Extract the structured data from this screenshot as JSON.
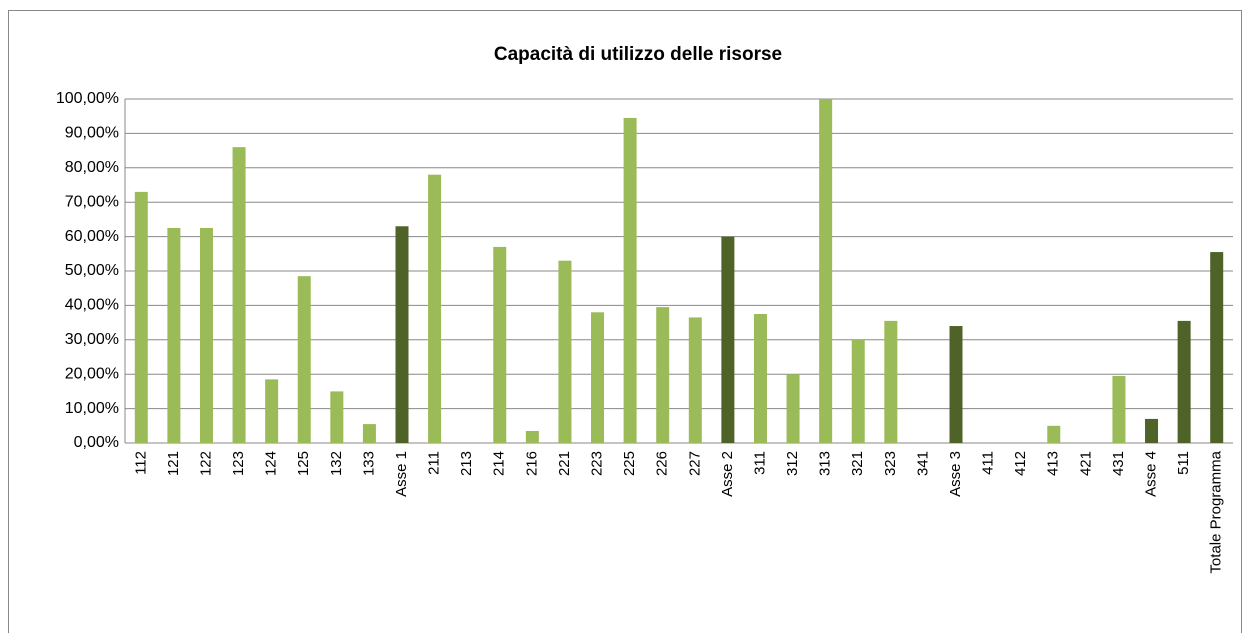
{
  "chart_data": {
    "type": "bar",
    "title": "Capacità di utilizzo delle risorse",
    "categories": [
      "112",
      "121",
      "122",
      "123",
      "124",
      "125",
      "132",
      "133",
      "Asse 1",
      "211",
      "213",
      "214",
      "216",
      "221",
      "223",
      "225",
      "226",
      "227",
      "Asse 2",
      "311",
      "312",
      "313",
      "321",
      "323",
      "341",
      "Asse 3",
      "411",
      "412",
      "413",
      "421",
      "431",
      "Asse 4",
      "511",
      "Totale Programma"
    ],
    "values": [
      73,
      62.5,
      62.5,
      86,
      18.5,
      48.5,
      15,
      5.5,
      63,
      78,
      0,
      57,
      3.5,
      53,
      38,
      94.5,
      39.5,
      36.5,
      60,
      37.5,
      20,
      100,
      30,
      35.5,
      0,
      34,
      0,
      0,
      5,
      0,
      19.5,
      7,
      35.5,
      55.5
    ],
    "colors": [
      "#9bbb59",
      "#9bbb59",
      "#9bbb59",
      "#9bbb59",
      "#9bbb59",
      "#9bbb59",
      "#9bbb59",
      "#9bbb59",
      "#4f6228",
      "#9bbb59",
      "#9bbb59",
      "#9bbb59",
      "#9bbb59",
      "#9bbb59",
      "#9bbb59",
      "#9bbb59",
      "#9bbb59",
      "#9bbb59",
      "#4f6228",
      "#9bbb59",
      "#9bbb59",
      "#9bbb59",
      "#9bbb59",
      "#9bbb59",
      "#9bbb59",
      "#4f6228",
      "#9bbb59",
      "#9bbb59",
      "#9bbb59",
      "#9bbb59",
      "#9bbb59",
      "#4f6228",
      "#4f6228",
      "#4f6228"
    ],
    "ylim": [
      0,
      100
    ],
    "yticks": [
      {
        "value": 0,
        "label": "0,00%"
      },
      {
        "value": 10,
        "label": "10,00%"
      },
      {
        "value": 20,
        "label": "20,00%"
      },
      {
        "value": 30,
        "label": "30,00%"
      },
      {
        "value": 40,
        "label": "40,00%"
      },
      {
        "value": 50,
        "label": "50,00%"
      },
      {
        "value": 60,
        "label": "60,00%"
      },
      {
        "value": 70,
        "label": "70,00%"
      },
      {
        "value": 80,
        "label": "80,00%"
      },
      {
        "value": 90,
        "label": "90,00%"
      },
      {
        "value": 100,
        "label": "100,00%"
      }
    ],
    "grid": true
  }
}
